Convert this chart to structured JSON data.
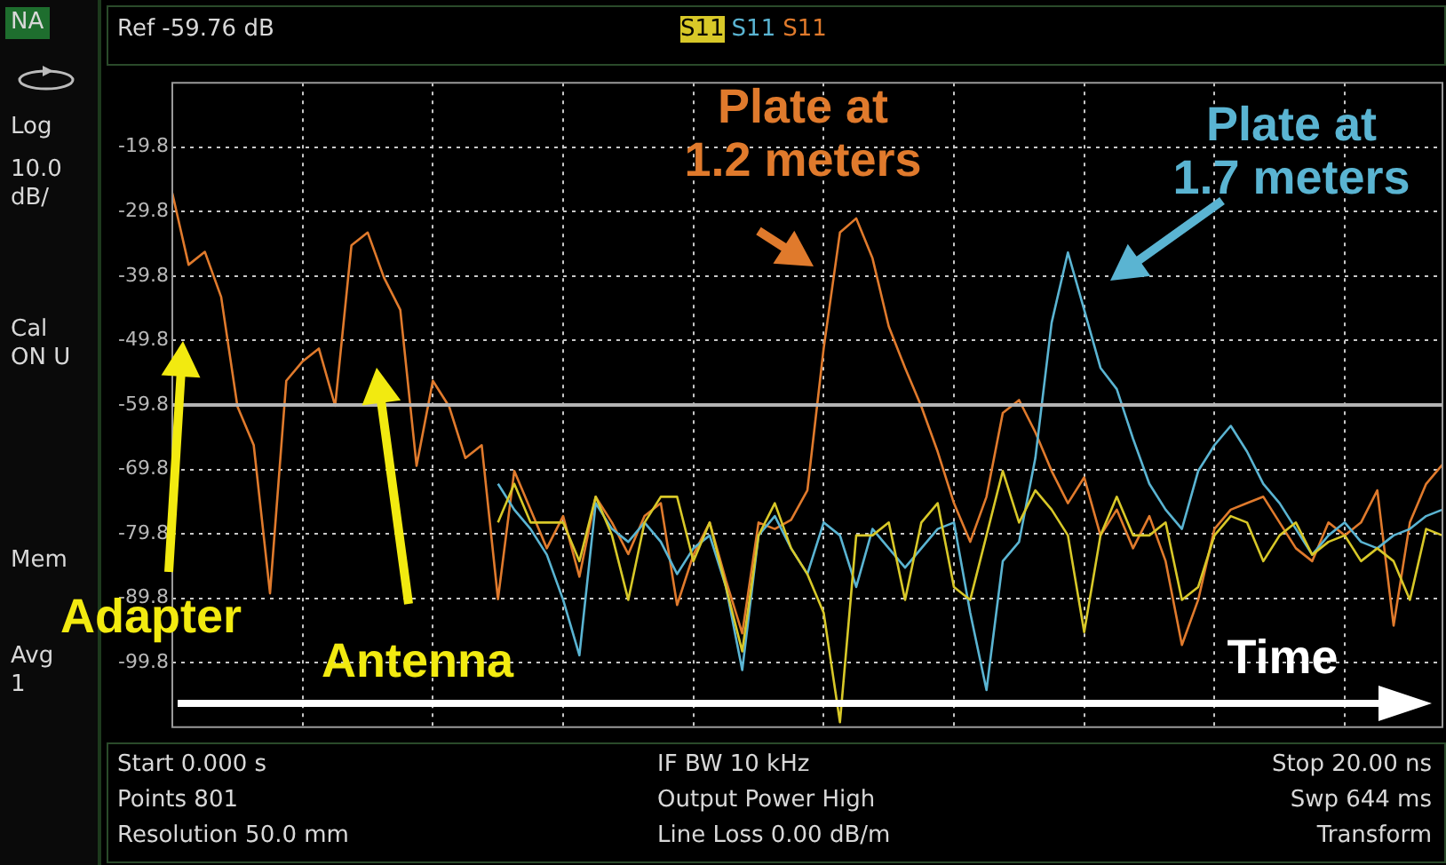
{
  "chart_data": {
    "type": "line",
    "marker": "none",
    "grid": true,
    "legend": "top",
    "tick_labels": "y",
    "categories": [
      null,
      null,
      null,
      null,
      null,
      null,
      null,
      null,
      null,
      null,
      null,
      null,
      null,
      null,
      null,
      null,
      null,
      null,
      null,
      null,
      null,
      null,
      null,
      null,
      null,
      null,
      null,
      null,
      null,
      null,
      null,
      null,
      null,
      null,
      null,
      null,
      null,
      null,
      null,
      null,
      null,
      null,
      null,
      null,
      null,
      null,
      null,
      null,
      null,
      null,
      null,
      null,
      null,
      null,
      null,
      null,
      null,
      null,
      null,
      null,
      null,
      null,
      null,
      null,
      null,
      null,
      null,
      null,
      null,
      null,
      null,
      null,
      null,
      null,
      null,
      null,
      null,
      null,
      null
    ],
    "ylim": [
      -109.76,
      -9.76
    ],
    "yticks": [
      {
        "value": -19.76,
        "label": "-19.8"
      },
      {
        "value": -29.76,
        "label": "-29.8"
      },
      {
        "value": -39.76,
        "label": "-39.8"
      },
      {
        "value": -49.76,
        "label": "-49.8"
      },
      {
        "value": -59.76,
        "label": "-59.8"
      },
      {
        "value": -69.76,
        "label": "-69.8"
      },
      {
        "value": -79.76,
        "label": "-79.8"
      },
      {
        "value": -89.76,
        "label": "-89.8"
      },
      {
        "value": -99.76,
        "label": "-99.8"
      }
    ],
    "ref_lines": [
      {
        "axis": "y",
        "value": -59.76,
        "label": "Ref -59.76 dB",
        "color": "#b4b4b4"
      }
    ],
    "series": [
      {
        "name": "S11",
        "color": "#d8c828",
        "values": [
          null,
          null,
          null,
          null,
          null,
          null,
          null,
          null,
          null,
          null,
          null,
          null,
          null,
          null,
          null,
          null,
          null,
          null,
          null,
          null,
          -78,
          -72,
          -78,
          -78,
          -78,
          -84,
          -74,
          -80,
          -90,
          -78,
          -74,
          -74,
          -84,
          -78,
          -88,
          -98,
          -80,
          -75,
          -82,
          -86,
          -92,
          -109,
          -80,
          -80,
          -78,
          -90,
          -78,
          -75,
          -88,
          -90,
          -80,
          -70,
          -78,
          -73,
          -76,
          -80,
          -95,
          -80,
          -74,
          -80,
          -80,
          -78,
          -90,
          -88,
          -80,
          -77,
          -78,
          -84,
          -80,
          -78,
          -83,
          -81,
          -80,
          -84,
          -82,
          -84,
          -90,
          -79,
          -80
        ]
      },
      {
        "name": "S11",
        "color": "#5ab4d2",
        "values": [
          null,
          null,
          null,
          null,
          null,
          null,
          null,
          null,
          null,
          null,
          null,
          null,
          null,
          null,
          null,
          null,
          null,
          null,
          null,
          null,
          -72,
          -76,
          -79,
          -83,
          -90,
          -98.6,
          -75,
          -79,
          -81,
          -78,
          -81,
          -86,
          -82,
          -80,
          -88,
          -100.9,
          -80,
          -77,
          -82,
          -86,
          -78,
          -80,
          -88,
          -79,
          -82,
          -85,
          -82,
          -79,
          -78,
          -92,
          -104,
          -84,
          -81,
          -68,
          -47,
          -36.1,
          -45,
          -54,
          -57.3,
          -65,
          -72,
          -76,
          -79,
          -70,
          -66,
          -63,
          -67,
          -72,
          -75,
          -79,
          -83,
          -80,
          -78,
          -81,
          -82,
          -80,
          -79,
          -77,
          -76
        ]
      },
      {
        "name": "S11",
        "color": "#e07a2c",
        "values": [
          -26.9,
          -38,
          -36,
          -43,
          -60,
          -66,
          -89,
          -56,
          -53,
          -51,
          -59.9,
          -35,
          -33,
          -40,
          -45,
          -69.2,
          -56,
          -60,
          -68,
          -66,
          -89.9,
          -70,
          -76,
          -82,
          -77,
          -86.4,
          -74,
          -78,
          -82.9,
          -77,
          -75,
          -90.8,
          -83,
          -78,
          -87,
          -95.2,
          -78,
          -79,
          -77.6,
          -73,
          -51,
          -33,
          -30.8,
          -37,
          -47.6,
          -54,
          -60,
          -67,
          -75,
          -81,
          -74,
          -61,
          -59,
          -64,
          -70,
          -75,
          -71,
          -80,
          -76,
          -82,
          -77,
          -84,
          -97,
          -90,
          -79,
          -76,
          -75,
          -74,
          -78,
          -82,
          -84,
          -78,
          -80,
          -78,
          -73,
          -94,
          -78,
          -72,
          -69
        ]
      }
    ],
    "annotations": [
      "Plate at 1.2 meters",
      "Plate at 1.7 meters",
      "Adapter",
      "Antenna",
      "Time",
      "NA",
      "Log",
      "10.0 dB/",
      "Cal ON U",
      "Mem",
      "Avg 1",
      "Start 0.000 s",
      "Points 801",
      "Resolution 50.0 mm",
      "IF BW 10 kHz",
      "Output Power High",
      "Line Loss 0.00  dB/m",
      "Stop 20.00 ns",
      "Swp 644 ms",
      "Transform"
    ]
  }
}
